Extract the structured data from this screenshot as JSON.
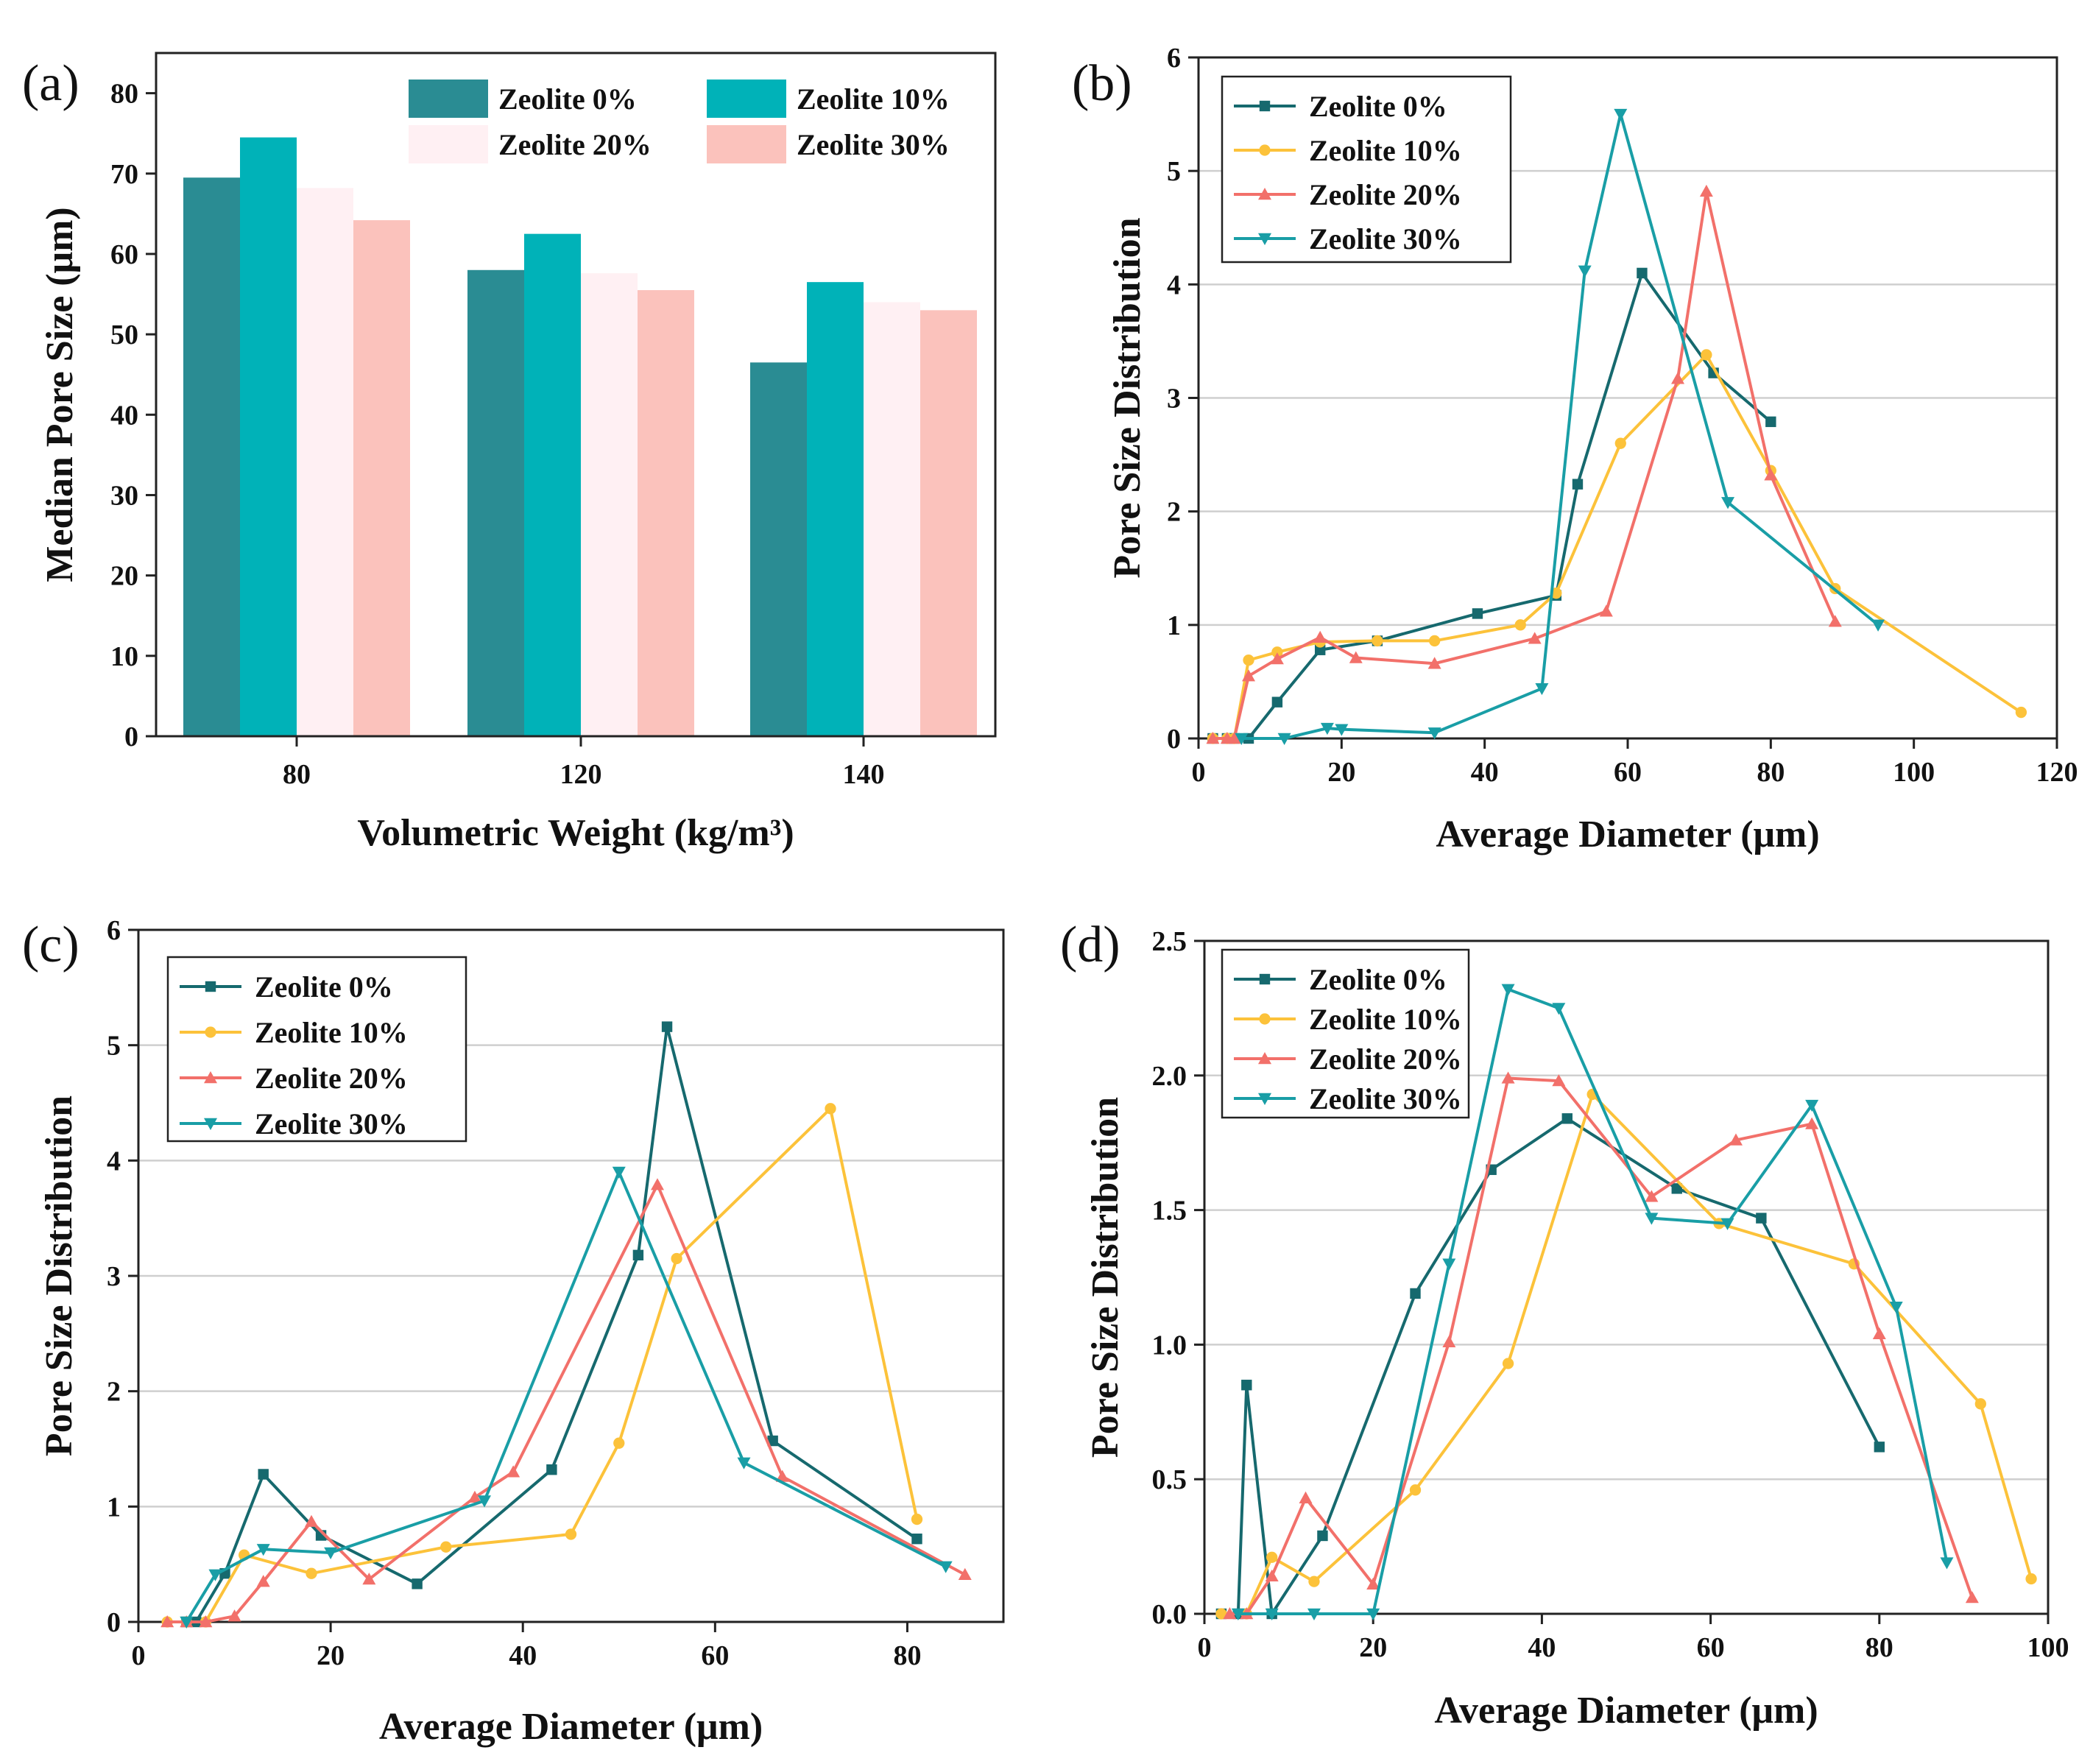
{
  "charts": [
    {
      "id": "a",
      "panel_label": "(a)",
      "type": "bar",
      "xlabel": "Volumetric Weight (kg/m³)",
      "ylabel": "Median Pore Size (μm)",
      "ylim": [
        0,
        85
      ],
      "yticks": [
        "0",
        "10",
        "20",
        "30",
        "40",
        "50",
        "60",
        "70",
        "80"
      ],
      "categories": [
        "80",
        "120",
        "140"
      ],
      "series": [
        {
          "name": "Zeolite 0%",
          "color": "#2a8c93",
          "values": [
            69.5,
            58,
            46.5
          ]
        },
        {
          "name": "Zeolite 10%",
          "color": "#00b2b8",
          "values": [
            74.5,
            62.5,
            56.5
          ]
        },
        {
          "name": "Zeolite 20%",
          "color": "#fff0f3",
          "values": [
            68.2,
            57.6,
            54
          ]
        },
        {
          "name": "Zeolite 30%",
          "color": "#fbc2bc",
          "values": [
            64.2,
            55.5,
            53
          ]
        }
      ]
    },
    {
      "id": "b",
      "panel_label": "(b)",
      "type": "line",
      "xlabel": "Average Diameter (μm)",
      "ylabel": "Pore Size Distribution",
      "xlim": [
        0,
        120
      ],
      "ylim": [
        0,
        6
      ],
      "xticks": [
        "0",
        "20",
        "40",
        "60",
        "80",
        "100",
        "120"
      ],
      "yticks": [
        "0",
        "1",
        "2",
        "3",
        "4",
        "5",
        "6"
      ],
      "series": [
        {
          "name": "Zeolite 0%",
          "color": "#16696e",
          "marker": "square",
          "x": [
            2,
            4,
            5,
            7,
            11,
            17,
            25,
            39,
            50,
            53,
            62,
            72,
            80
          ],
          "y": [
            0,
            0,
            0,
            0,
            0.32,
            0.78,
            0.86,
            1.1,
            1.26,
            2.24,
            4.1,
            3.22,
            2.79
          ]
        },
        {
          "name": "Zeolite 10%",
          "color": "#fcc23a",
          "marker": "circle",
          "x": [
            2,
            4,
            5,
            7,
            11,
            17,
            25,
            33,
            45,
            50,
            59,
            71,
            80,
            89,
            115
          ],
          "y": [
            0,
            0,
            0,
            0.69,
            0.76,
            0.85,
            0.86,
            0.86,
            1.0,
            1.28,
            2.6,
            3.38,
            2.36,
            1.32,
            0.23
          ]
        },
        {
          "name": "Zeolite 20%",
          "color": "#f2706a",
          "marker": "triangle-up",
          "x": [
            2,
            4,
            5,
            7,
            11,
            17,
            22,
            33,
            47,
            57,
            67,
            71,
            80,
            89
          ],
          "y": [
            0,
            0,
            0,
            0.55,
            0.7,
            0.89,
            0.71,
            0.66,
            0.88,
            1.12,
            3.17,
            4.82,
            2.32,
            1.03
          ]
        },
        {
          "name": "Zeolite 30%",
          "color": "#199ea6",
          "marker": "triangle-down",
          "x": [
            6,
            12,
            18,
            20,
            33,
            48,
            54,
            59,
            74,
            95
          ],
          "y": [
            0,
            0,
            0.09,
            0.08,
            0.05,
            0.44,
            4.12,
            5.5,
            2.08,
            1.0
          ]
        }
      ]
    },
    {
      "id": "c",
      "panel_label": "(c)",
      "type": "line",
      "xlabel": "Average Diameter (μm)",
      "ylabel": "Pore Size Distribution",
      "xlim": [
        0,
        90
      ],
      "ylim": [
        0,
        6
      ],
      "xticks": [
        "0",
        "20",
        "40",
        "60",
        "80"
      ],
      "yticks": [
        "0",
        "1",
        "2",
        "3",
        "4",
        "5",
        "6"
      ],
      "series": [
        {
          "name": "Zeolite 0%",
          "color": "#16696e",
          "marker": "square",
          "x": [
            5,
            6,
            9,
            13,
            19,
            29,
            43,
            52,
            55,
            66,
            81
          ],
          "y": [
            0,
            0,
            0.42,
            1.28,
            0.75,
            0.33,
            1.32,
            3.18,
            5.16,
            1.57,
            0.72
          ]
        },
        {
          "name": "Zeolite 10%",
          "color": "#fcc23a",
          "marker": "circle",
          "x": [
            3,
            5,
            7,
            11,
            18,
            32,
            45,
            50,
            56,
            72,
            81
          ],
          "y": [
            0,
            0,
            0,
            0.58,
            0.42,
            0.65,
            0.76,
            1.55,
            3.15,
            4.45,
            0.89
          ]
        },
        {
          "name": "Zeolite 20%",
          "color": "#f2706a",
          "marker": "triangle-up",
          "x": [
            3,
            5,
            7,
            10,
            13,
            18,
            24,
            35,
            39,
            54,
            67,
            86
          ],
          "y": [
            0,
            0,
            0,
            0.05,
            0.35,
            0.87,
            0.37,
            1.08,
            1.3,
            3.79,
            1.26,
            0.41
          ]
        },
        {
          "name": "Zeolite 30%",
          "color": "#199ea6",
          "marker": "triangle-down",
          "x": [
            5,
            8,
            13,
            20,
            36,
            50,
            63,
            84
          ],
          "y": [
            0,
            0.41,
            0.63,
            0.6,
            1.05,
            3.9,
            1.38,
            0.48
          ]
        }
      ]
    },
    {
      "id": "d",
      "panel_label": "(d)",
      "type": "line",
      "xlabel": "Average Diameter (μm)",
      "ylabel": "Pore Size Distribution",
      "xlim": [
        0,
        100
      ],
      "ylim": [
        0,
        2.5
      ],
      "xticks": [
        "0",
        "20",
        "40",
        "60",
        "80",
        "100"
      ],
      "yticks": [
        "0.0",
        "0.5",
        "1.0",
        "1.5",
        "2.0",
        "2.5"
      ],
      "series": [
        {
          "name": "Zeolite 0%",
          "color": "#16696e",
          "marker": "square",
          "x": [
            2,
            4,
            5,
            8,
            14,
            25,
            34,
            43,
            56,
            66,
            80
          ],
          "y": [
            0,
            0,
            0.85,
            0,
            0.29,
            1.19,
            1.65,
            1.84,
            1.58,
            1.47,
            0.62
          ]
        },
        {
          "name": "Zeolite 10%",
          "color": "#fcc23a",
          "marker": "circle",
          "x": [
            2,
            5,
            8,
            13,
            25,
            36,
            46,
            61,
            77,
            92,
            98
          ],
          "y": [
            0,
            0,
            0.21,
            0.12,
            0.46,
            0.93,
            1.93,
            1.45,
            1.3,
            0.78,
            0.13
          ]
        },
        {
          "name": "Zeolite 20%",
          "color": "#f2706a",
          "marker": "triangle-up",
          "x": [
            3,
            5,
            8,
            12,
            20,
            29,
            36,
            42,
            53,
            63,
            72,
            80,
            91
          ],
          "y": [
            0,
            0,
            0.14,
            0.43,
            0.11,
            1.01,
            1.99,
            1.98,
            1.55,
            1.76,
            1.82,
            1.04,
            0.06
          ]
        },
        {
          "name": "Zeolite 30%",
          "color": "#199ea6",
          "marker": "triangle-down",
          "x": [
            4,
            8,
            13,
            20,
            29,
            36,
            42,
            53,
            62,
            72,
            82,
            88
          ],
          "y": [
            0,
            0,
            0,
            0,
            1.3,
            2.32,
            2.25,
            1.47,
            1.45,
            1.89,
            1.14,
            0.19
          ]
        }
      ]
    }
  ]
}
